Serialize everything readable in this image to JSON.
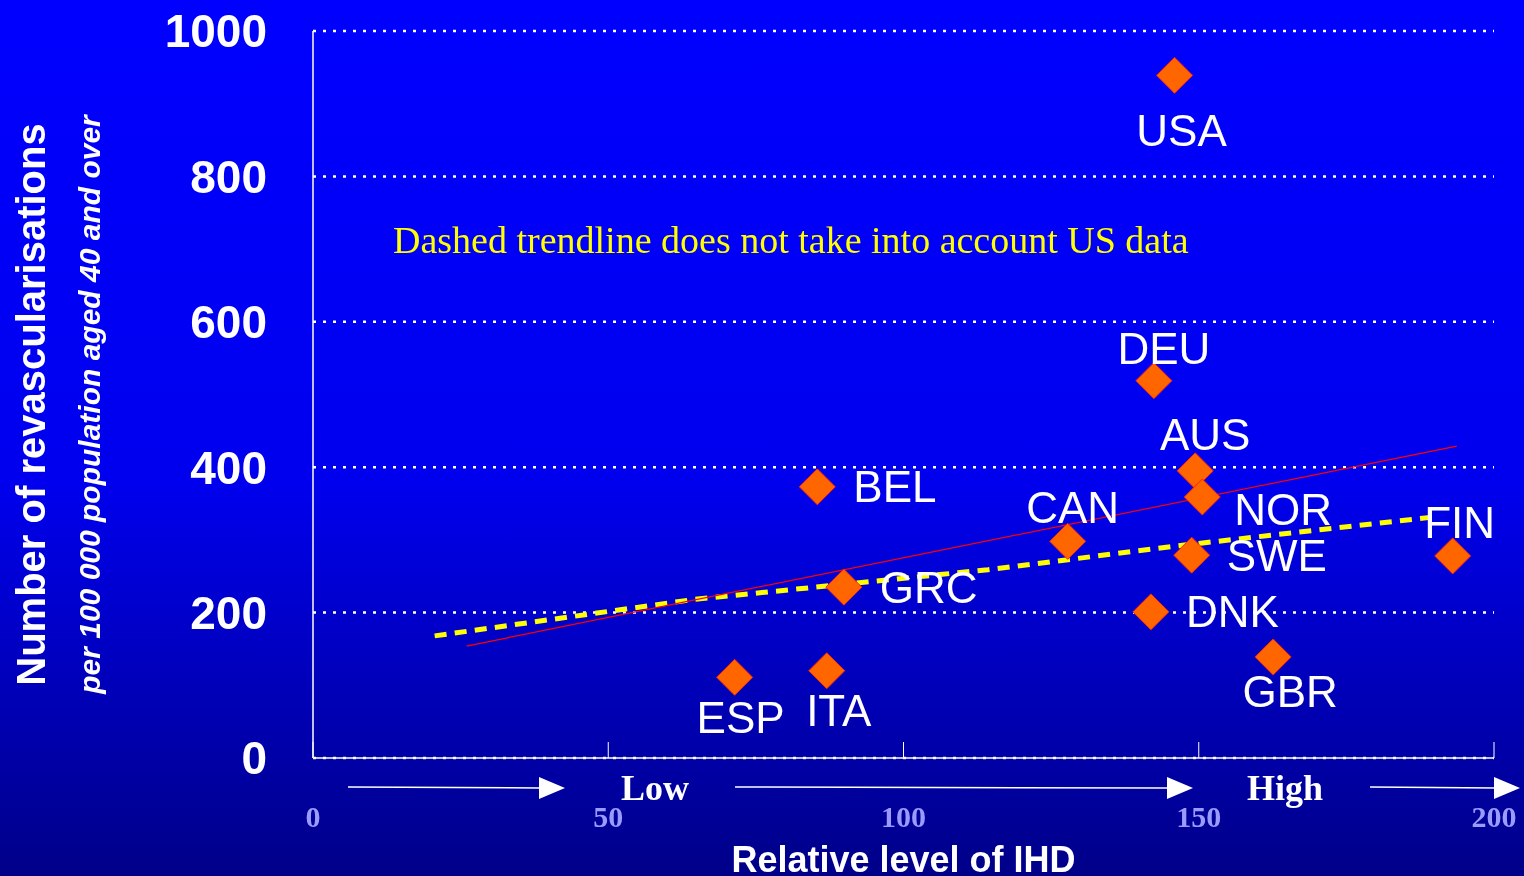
{
  "chart_data": {
    "type": "scatter",
    "xlabel": "Relative level of IHD",
    "ylabel": "Number of revascularisations\nper 100 000 population aged 40 and over",
    "annotations": [
      "Dashed trendline does not take into account US data",
      "Low",
      "High"
    ],
    "xlim": [
      0,
      200
    ],
    "xticks": [
      0,
      50,
      100,
      150,
      200
    ],
    "ylim": [
      0,
      1000
    ],
    "yticks": [
      0,
      200,
      400,
      600,
      800,
      1000
    ],
    "grid": "y",
    "legend": false,
    "series": [
      {
        "type": "scatter",
        "color": "#ff6600",
        "marker": "diamond",
        "x": [
          145.9,
          142.4,
          149.4,
          150.6,
          85.4,
          127.8,
          148.8,
          193,
          89.9,
          141.9,
          162.6,
          87,
          71.4
        ],
        "values": [
          939,
          519,
          395,
          359,
          373,
          298,
          279,
          278,
          235,
          201,
          139,
          120,
          111
        ],
        "value_labels": [
          "USA",
          "DEU",
          "AUS",
          "NOR",
          "BEL",
          "CAN",
          "SWE",
          "FIN",
          "GRC",
          "DNK",
          "GBR",
          "ITA",
          "ESP"
        ]
      },
      {
        "type": "line",
        "color": "#ff0000",
        "line_style": "solid",
        "marker": "none",
        "x": [
          26,
          193.7
        ],
        "values": [
          154,
          429
        ]
      },
      {
        "type": "line",
        "color": "#ffff00",
        "line_style": "dashed",
        "marker": "none",
        "x": [
          20.6,
          64.4,
          114.3,
          147.6,
          189.2
        ],
        "values": [
          168,
          218,
          259,
          293,
          331
        ]
      }
    ]
  }
}
